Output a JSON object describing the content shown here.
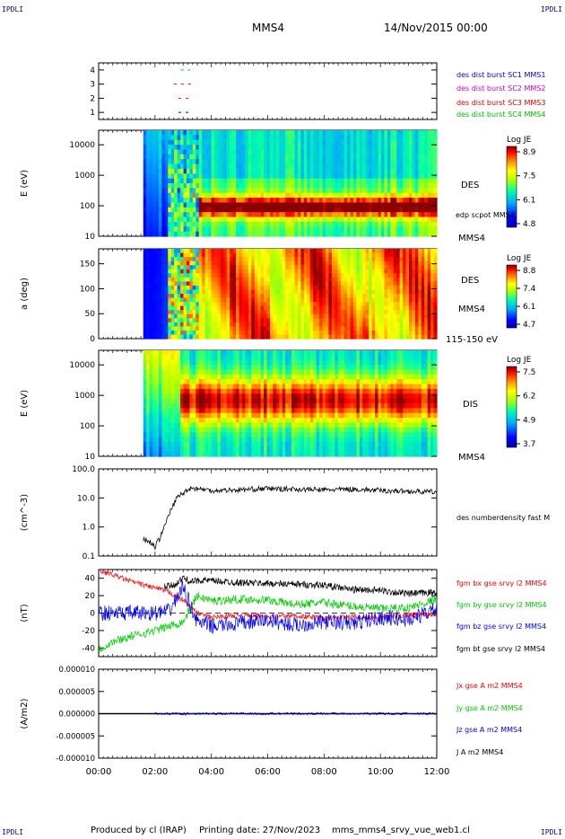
{
  "corner_labels": {
    "top_left": "IPDLI",
    "top_right": "IPDLI",
    "bottom_left": "IPDLI",
    "bottom_right": "IPDLI"
  },
  "header": {
    "spacecraft": "MMS4",
    "date": "14/Nov/2015 00:00"
  },
  "footer": {
    "produced_by": "Produced by cl (IRAP)",
    "printing_date": "Printing date: 27/Nov/2023",
    "filename": "mms_mms4_srvy_vue_web1.cl"
  },
  "colors": {
    "mms1": "#0000cc",
    "mms2": "#cc00cc",
    "mms3": "#dd0000",
    "mms4": "#00bb00",
    "bx": "#ff0000",
    "by": "#00cc00",
    "bz": "#0000ff",
    "bt": "#000000"
  },
  "chart_data": [
    {
      "id": "burst",
      "type": "scatter",
      "ylim": [
        0.5,
        4.5
      ],
      "yticks": [
        "1",
        "2",
        "3",
        "4"
      ],
      "series": [
        {
          "name": "des dist burst SC1 MMS1",
          "y": 1,
          "x_start": "02:50",
          "x_end": "03:15"
        },
        {
          "name": "des dist burst SC2 MMS2",
          "y": 2,
          "x_start": "02:50",
          "x_end": "03:15"
        },
        {
          "name": "des dist burst SC3 MMS3",
          "y": 3,
          "x_start": "02:40",
          "x_end": "03:20"
        },
        {
          "name": "des dist burst SC4 MMS4",
          "y": 4,
          "x_start": "02:55",
          "x_end": "03:15"
        }
      ]
    },
    {
      "id": "des_energy",
      "type": "heatmap",
      "scale": "log",
      "ylabel": "E (eV)",
      "ylim": [
        10,
        30000
      ],
      "yticks": [
        "10",
        "100",
        "1000",
        "10000"
      ],
      "side_label": "DES",
      "under_label": "MMS4",
      "overlay_label": "edp scpot MMS4",
      "colorbar": {
        "title": "Log JE",
        "ticks": [
          "8.9",
          "7.5",
          "6.1",
          "4.8"
        ]
      },
      "data_start": "01:35"
    },
    {
      "id": "des_pitch",
      "type": "heatmap",
      "ylabel": "a (deg)",
      "ylim": [
        0,
        180
      ],
      "yticks": [
        "0",
        "50",
        "100",
        "150"
      ],
      "side_label": "DES",
      "under_label": "MMS4",
      "range_label": "115-150 eV",
      "colorbar": {
        "title": "Log JE",
        "ticks": [
          "8.8",
          "7.4",
          "6.1",
          "4.7"
        ]
      },
      "data_start": "01:35"
    },
    {
      "id": "dis_energy",
      "type": "heatmap",
      "scale": "log",
      "ylabel": "E (eV)",
      "ylim": [
        10,
        30000
      ],
      "yticks": [
        "10",
        "100",
        "1000",
        "10000"
      ],
      "side_label": "DIS",
      "under_label": "MMS4",
      "colorbar": {
        "title": "Log JE",
        "ticks": [
          "7.5",
          "6.2",
          "4.9",
          "3.7"
        ]
      },
      "data_start": "01:35"
    },
    {
      "id": "density",
      "type": "line",
      "scale": "log",
      "ylabel": "(cm^-3)",
      "ylim": [
        0.1,
        100
      ],
      "yticks": [
        "0.1",
        "1.0",
        "10.0",
        "100.0"
      ],
      "series": [
        {
          "name": "des numberdensity fast M",
          "color": "#000000",
          "x": [
            "01:35",
            "01:50",
            "02:00",
            "02:10",
            "02:20",
            "02:30",
            "02:40",
            "02:50",
            "03:00",
            "03:10",
            "03:20",
            "03:40",
            "04:00",
            "05:00",
            "06:00",
            "07:00",
            "08:00",
            "09:00",
            "10:00",
            "11:00",
            "12:00"
          ],
          "y": [
            0.4,
            0.3,
            0.2,
            0.4,
            1.0,
            2.5,
            6,
            12,
            14,
            20,
            22,
            20,
            18,
            19,
            21,
            20,
            19,
            20,
            18,
            17,
            16
          ]
        }
      ]
    },
    {
      "id": "bfield",
      "type": "line",
      "ylabel": "(nT)",
      "ylim": [
        -50,
        50
      ],
      "yticks": [
        "-40",
        "-20",
        "0",
        "20",
        "40"
      ],
      "series": [
        {
          "name": "fgm bx gse srvy l2 MMS4",
          "color": "#ff0000",
          "x": [
            "00:00",
            "00:30",
            "01:00",
            "01:30",
            "02:00",
            "02:30",
            "03:00",
            "03:30",
            "04:00",
            "05:00",
            "06:00",
            "07:00",
            "08:00",
            "09:00",
            "10:00",
            "11:00",
            "12:00"
          ],
          "y": [
            49,
            44,
            38,
            33,
            29,
            24,
            15,
            0,
            -5,
            -2,
            -4,
            -3,
            -6,
            -4,
            -5,
            -2,
            -1
          ]
        },
        {
          "name": "fgm by gse srvy l2 MMS4",
          "color": "#00cc00",
          "x": [
            "00:00",
            "00:30",
            "01:00",
            "01:30",
            "02:00",
            "02:30",
            "03:00",
            "03:30",
            "04:00",
            "05:00",
            "06:00",
            "07:00",
            "08:00",
            "09:00",
            "10:00",
            "11:00",
            "12:00"
          ],
          "y": [
            -42,
            -33,
            -28,
            -24,
            -20,
            -15,
            -10,
            20,
            14,
            16,
            15,
            10,
            12,
            8,
            5,
            6,
            16
          ]
        },
        {
          "name": "fgm bz gse srvy l2 MMS4",
          "color": "#0000ff",
          "x": [
            "00:00",
            "01:00",
            "02:00",
            "02:30",
            "03:00",
            "03:30",
            "04:00",
            "05:00",
            "06:00",
            "07:00",
            "08:00",
            "09:00",
            "10:00",
            "11:00",
            "12:00"
          ],
          "y": [
            0,
            0,
            0,
            2,
            30,
            -10,
            -15,
            -12,
            -8,
            -14,
            -10,
            -12,
            -5,
            -8,
            5
          ]
        },
        {
          "name": "fgm bt gse srvy l2 MMS4",
          "color": "#000000",
          "x": [
            "02:20",
            "02:40",
            "03:00",
            "03:20",
            "03:40",
            "04:00",
            "05:00",
            "06:00",
            "07:00",
            "08:00",
            "09:00",
            "10:00",
            "11:00",
            "12:00"
          ],
          "y": [
            30,
            32,
            40,
            36,
            38,
            37,
            35,
            34,
            33,
            32,
            27,
            26,
            22,
            24
          ]
        }
      ]
    },
    {
      "id": "current",
      "type": "line",
      "ylabel": "(A/m2)",
      "ylim": [
        -1e-05,
        1e-05
      ],
      "yticks": [
        "-0.000010",
        "-0.000005",
        "0.000000",
        "0.000005",
        "0.000010"
      ],
      "xticks": [
        "00:00",
        "02:00",
        "04:00",
        "06:00",
        "08:00",
        "10:00",
        "12:00"
      ],
      "series": [
        {
          "name": "Jx gse A m2 MMS4",
          "color": "#ff0000"
        },
        {
          "name": "Jy gse A m2 MMS4",
          "color": "#00cc00"
        },
        {
          "name": "Jz gse A m2 MMS4",
          "color": "#0000ff"
        },
        {
          "name": "J A m2 MMS4",
          "color": "#000000"
        }
      ]
    }
  ]
}
